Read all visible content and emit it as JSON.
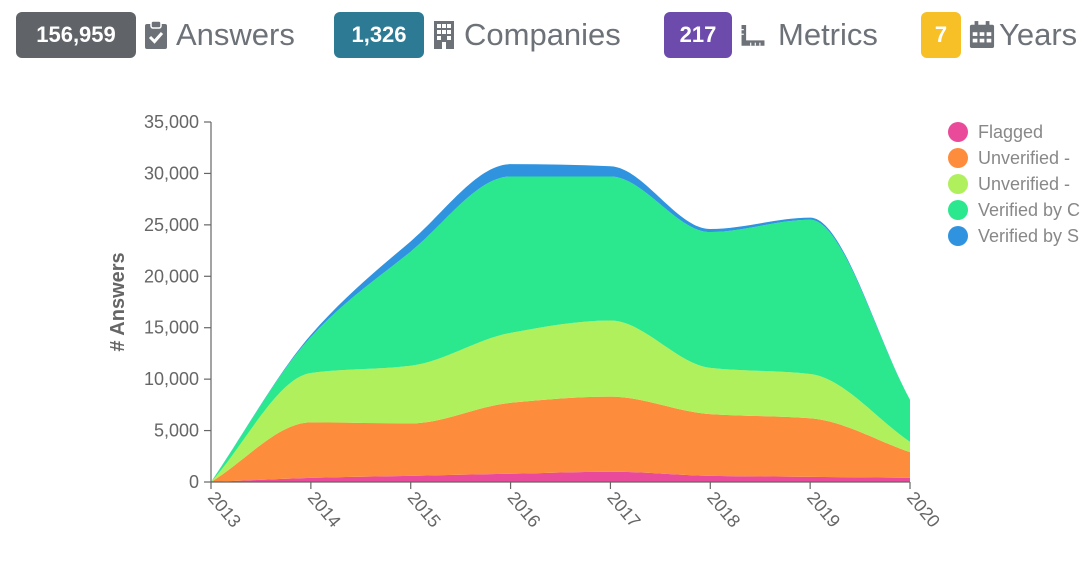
{
  "stats": [
    {
      "value": "156,959",
      "label": "Answers",
      "color": "#606469",
      "icon": "clipboard-check-icon"
    },
    {
      "value": "1,326",
      "label": "Companies",
      "color": "#2c7a94",
      "icon": "building-icon"
    },
    {
      "value": "217",
      "label": "Metrics",
      "color": "#6c4bad",
      "icon": "ruler-icon"
    },
    {
      "value": "7",
      "label": "Years",
      "color": "#f6c026",
      "icon": "calendar-icon"
    }
  ],
  "chart_data": {
    "type": "area",
    "stacked": true,
    "x": [
      2013,
      2014,
      2015,
      2016,
      2017,
      2018,
      2019,
      2020
    ],
    "xlabel": "",
    "ylabel": "# Answers",
    "ylim": [
      0,
      35000
    ],
    "yticks": [
      "0",
      "5,000",
      "10,000",
      "15,000",
      "20,000",
      "25,000",
      "30,000",
      "35,000"
    ],
    "xticks": [
      "2013",
      "2014",
      "2015",
      "2016",
      "2017",
      "2018",
      "2019",
      "2020"
    ],
    "legend_position": "top-right",
    "series": [
      {
        "name": "Flagged",
        "color": "#ea4a9a",
        "values": [
          0,
          400,
          600,
          800,
          1000,
          600,
          500,
          400
        ]
      },
      {
        "name": "Unverified - ",
        "color": "#fd8d3c",
        "values": [
          0,
          5400,
          5100,
          6900,
          7300,
          6000,
          5700,
          2500
        ]
      },
      {
        "name": "Unverified - ",
        "color": "#b0f05c",
        "values": [
          0,
          4800,
          5600,
          6800,
          7400,
          4500,
          4300,
          1000
        ]
      },
      {
        "name": "Verified by C",
        "color": "#2be88e",
        "values": [
          0,
          3500,
          11100,
          15200,
          14000,
          13200,
          15000,
          4100
        ]
      },
      {
        "name": "Verified by S",
        "color": "#2f93e0",
        "values": [
          0,
          200,
          1000,
          1200,
          1000,
          300,
          200,
          0
        ]
      }
    ]
  }
}
